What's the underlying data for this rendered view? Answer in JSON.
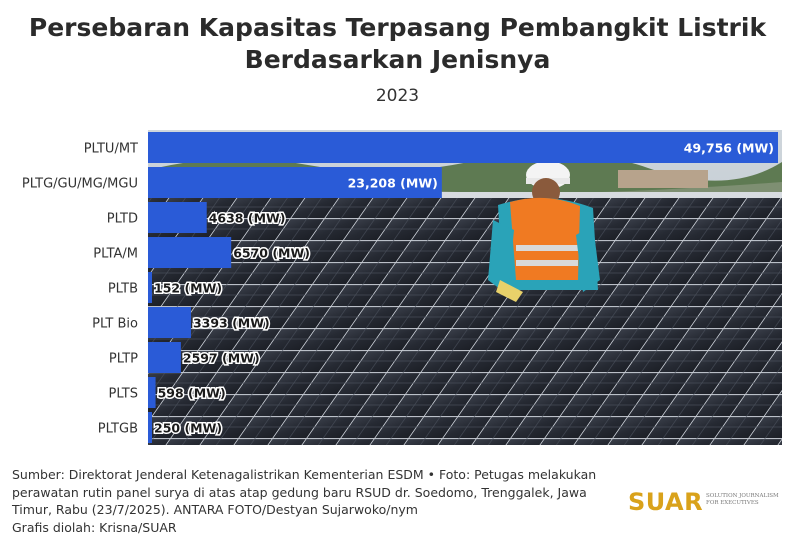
{
  "title_line1": "Persebaran Kapasitas Terpasang Pembangkit Listrik",
  "title_line2": "Berdasarkan Jenisnya",
  "subtitle": "2023",
  "chart_data": {
    "type": "bar",
    "orientation": "horizontal",
    "categories": [
      "PLTU/MT",
      "PLTG/GU/MG/MGU",
      "PLTD",
      "PLTA/M",
      "PLTB",
      "PLT Bio",
      "PLTP",
      "PLTS",
      "PLTGB"
    ],
    "values": [
      49756,
      23208,
      4638,
      6570,
      152,
      3393,
      2597,
      598,
      250
    ],
    "value_labels": [
      "49,756 (MW)",
      "23,208 (MW)",
      "4638 (MW)",
      "6570 (MW)",
      "152 (MW)",
      "3393 (MW)",
      "2597 (MW)",
      "598 (MW)",
      "250 (MW)"
    ],
    "unit": "MW",
    "xlim": [
      0,
      49756
    ],
    "bar_color": "#2a5bd7",
    "grid": false,
    "legend": "none"
  },
  "source": "Sumber: Direktorat Jenderal Ketenagalistrikan Kementerian ESDM • Foto: Petugas melakukan perawatan rutin panel surya di atas atap gedung baru RSUD dr. Soedomo, Trenggalek, Jawa Timur, Rabu (23/7/2025). ANTARA FOTO/Destyan Sujarwoko/nym",
  "credit": "Grafis diolah: Krisna/SUAR",
  "logo": {
    "word": "SUAR",
    "tagline": "SOLUTION JOURNALISM FOR EXECUTIVES",
    "color": "#d9a21b"
  }
}
